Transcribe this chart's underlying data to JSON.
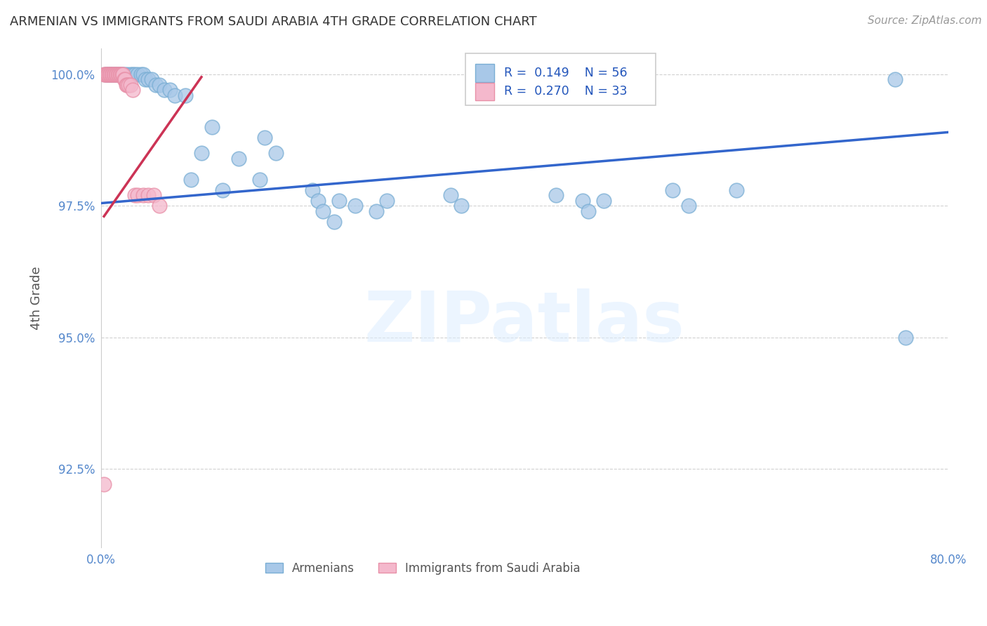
{
  "title": "ARMENIAN VS IMMIGRANTS FROM SAUDI ARABIA 4TH GRADE CORRELATION CHART",
  "source_text": "Source: ZipAtlas.com",
  "ylabel": "4th Grade",
  "watermark": "ZIPatlas",
  "xlim": [
    0.0,
    0.8
  ],
  "ylim": [
    0.91,
    1.005
  ],
  "yticks": [
    0.925,
    0.95,
    0.975,
    1.0
  ],
  "yticklabels": [
    "92.5%",
    "95.0%",
    "97.5%",
    "100.0%"
  ],
  "xtick_positions": [
    0.0,
    0.1,
    0.2,
    0.3,
    0.4,
    0.5,
    0.6,
    0.7,
    0.8
  ],
  "xticklabels": [
    "0.0%",
    "",
    "",
    "",
    "",
    "",
    "",
    "",
    "80.0%"
  ],
  "blue_R": 0.149,
  "blue_N": 56,
  "pink_R": 0.27,
  "pink_N": 33,
  "blue_color": "#a8c8e8",
  "pink_color": "#f4b8cc",
  "blue_edge_color": "#7aaed4",
  "pink_edge_color": "#e890a8",
  "blue_line_color": "#3366cc",
  "pink_line_color": "#cc3355",
  "grid_color": "#cccccc",
  "title_color": "#333333",
  "tick_color": "#5588cc",
  "legend_text_color": "#2255bb",
  "blue_scatter_x": [
    0.004,
    0.006,
    0.007,
    0.008,
    0.009,
    0.01,
    0.012,
    0.013,
    0.015,
    0.016,
    0.018,
    0.02,
    0.022,
    0.025,
    0.028,
    0.03,
    0.032,
    0.035,
    0.038,
    0.04,
    0.042,
    0.045,
    0.048,
    0.052,
    0.055,
    0.06,
    0.065,
    0.07,
    0.08,
    0.085,
    0.095,
    0.105,
    0.115,
    0.13,
    0.15,
    0.155,
    0.165,
    0.2,
    0.205,
    0.21,
    0.22,
    0.225,
    0.24,
    0.26,
    0.27,
    0.33,
    0.34,
    0.43,
    0.455,
    0.46,
    0.475,
    0.54,
    0.555,
    0.6,
    0.75,
    0.76
  ],
  "blue_scatter_y": [
    1.0,
    1.0,
    1.0,
    1.0,
    1.0,
    1.0,
    1.0,
    1.0,
    1.0,
    1.0,
    1.0,
    1.0,
    1.0,
    1.0,
    1.0,
    1.0,
    1.0,
    1.0,
    1.0,
    1.0,
    0.999,
    0.999,
    0.999,
    0.998,
    0.998,
    0.997,
    0.997,
    0.996,
    0.996,
    0.98,
    0.985,
    0.99,
    0.978,
    0.984,
    0.98,
    0.988,
    0.985,
    0.978,
    0.976,
    0.974,
    0.972,
    0.976,
    0.975,
    0.974,
    0.976,
    0.977,
    0.975,
    0.977,
    0.976,
    0.974,
    0.976,
    0.978,
    0.975,
    0.978,
    0.999,
    0.95
  ],
  "pink_scatter_x": [
    0.003,
    0.004,
    0.005,
    0.006,
    0.007,
    0.008,
    0.009,
    0.01,
    0.011,
    0.012,
    0.013,
    0.014,
    0.015,
    0.016,
    0.017,
    0.018,
    0.019,
    0.02,
    0.021,
    0.022,
    0.023,
    0.024,
    0.025,
    0.026,
    0.028,
    0.03,
    0.032,
    0.035,
    0.04,
    0.045,
    0.05,
    0.055,
    0.003
  ],
  "pink_scatter_y": [
    1.0,
    1.0,
    1.0,
    1.0,
    1.0,
    1.0,
    1.0,
    1.0,
    1.0,
    1.0,
    1.0,
    1.0,
    1.0,
    1.0,
    1.0,
    1.0,
    1.0,
    1.0,
    1.0,
    0.999,
    0.999,
    0.998,
    0.998,
    0.998,
    0.998,
    0.997,
    0.977,
    0.977,
    0.977,
    0.977,
    0.977,
    0.975,
    0.922
  ],
  "blue_line_x0": 0.0,
  "blue_line_y0": 0.9755,
  "blue_line_x1": 0.8,
  "blue_line_y1": 0.989,
  "pink_line_x0": 0.003,
  "pink_line_y0": 0.973,
  "pink_line_x1": 0.095,
  "pink_line_y1": 0.9995
}
